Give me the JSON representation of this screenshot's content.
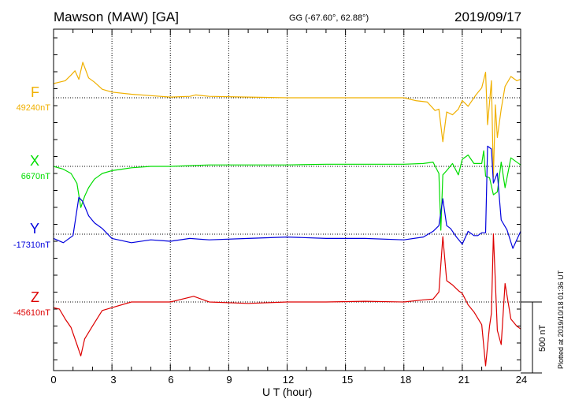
{
  "header": {
    "title": "Mawson (MAW)  [GA]",
    "coords": "GG (-67.60°,  62.88°)",
    "date": "2019/09/17"
  },
  "footer": {
    "plotted": "Plotted at 2019/10/18 01:36 UT"
  },
  "colors": {
    "F": "#f0b000",
    "X": "#00dd00",
    "Y": "#0000dd",
    "Z": "#dd0000"
  },
  "chart_data": {
    "type": "line",
    "title": "Mawson (MAW)  [GA]",
    "xlabel": "U T (hour)",
    "ylabel": "",
    "xlim": [
      0,
      24
    ],
    "xticks": [
      "0",
      "3",
      "6",
      "9",
      "12",
      "15",
      "18",
      "21",
      "24"
    ],
    "grid": true,
    "scale_bar_label": "500 nT",
    "scale_bar_value": 500,
    "series": [
      {
        "name": "F",
        "baseline_label": "49240nT",
        "baseline": 49240,
        "x": [
          0,
          0.3,
          0.6,
          0.9,
          1.1,
          1.3,
          1.5,
          1.8,
          2.1,
          2.5,
          3,
          4,
          5,
          6,
          7,
          7.3,
          8,
          10,
          12,
          14,
          16,
          18,
          18.6,
          19.2,
          19.6,
          19.8,
          20,
          20.2,
          20.5,
          20.8,
          21,
          21.3,
          21.7,
          22,
          22.2,
          22.3,
          22.5,
          22.6,
          22.7,
          22.8,
          23,
          23.2,
          23.5,
          23.8,
          24
        ],
        "y": [
          100,
          110,
          120,
          160,
          190,
          130,
          250,
          140,
          110,
          60,
          40,
          25,
          15,
          5,
          10,
          20,
          10,
          5,
          0,
          0,
          0,
          0,
          -20,
          -30,
          -90,
          -80,
          -310,
          -100,
          -120,
          -80,
          -20,
          -60,
          20,
          70,
          180,
          -190,
          120,
          -560,
          -50,
          -280,
          -80,
          80,
          150,
          120,
          130
        ]
      },
      {
        "name": "X",
        "baseline_label": "6670nT",
        "baseline": 6670,
        "x": [
          0,
          0.5,
          0.9,
          1.2,
          1.4,
          1.6,
          1.8,
          2.1,
          2.5,
          3,
          3.5,
          4,
          5,
          6,
          7,
          8,
          10,
          12,
          14,
          16,
          18,
          19,
          19.5,
          19.8,
          19.9,
          20,
          20.2,
          20.5,
          20.8,
          21,
          21.3,
          21.6,
          22,
          22.1,
          22.2,
          22.4,
          22.6,
          22.8,
          23,
          23.2,
          23.5,
          24
        ],
        "y": [
          0,
          -20,
          -50,
          -120,
          -290,
          -210,
          -150,
          -90,
          -50,
          -30,
          -20,
          -10,
          0,
          0,
          5,
          10,
          10,
          10,
          15,
          15,
          15,
          20,
          30,
          -50,
          -450,
          -60,
          -30,
          20,
          -60,
          50,
          80,
          20,
          20,
          110,
          -70,
          -80,
          -200,
          -180,
          30,
          -150,
          60,
          10
        ]
      },
      {
        "name": "Y",
        "baseline_label": "-17310nT",
        "baseline": -17310,
        "x": [
          0,
          0.5,
          1,
          1.3,
          1.5,
          1.8,
          2.1,
          2.5,
          3,
          4,
          5,
          6,
          7,
          8,
          10,
          12,
          14,
          16,
          18,
          19,
          19.5,
          19.8,
          20,
          20.2,
          20.4,
          20.7,
          21,
          21.3,
          21.6,
          21.8,
          22,
          22.2,
          22.3,
          22.5,
          22.6,
          22.8,
          23,
          23.3,
          23.6,
          24
        ],
        "y": [
          -30,
          -60,
          -10,
          260,
          230,
          130,
          80,
          40,
          -30,
          -60,
          -40,
          -50,
          -30,
          -40,
          -30,
          -20,
          -30,
          -30,
          -40,
          -20,
          20,
          60,
          250,
          60,
          40,
          -20,
          -70,
          20,
          -10,
          -10,
          10,
          10,
          620,
          600,
          360,
          430,
          100,
          30,
          -100,
          20
        ]
      },
      {
        "name": "Z",
        "baseline_label": "-45610nT",
        "baseline": -45610,
        "x": [
          0,
          0.3,
          0.6,
          0.9,
          1.2,
          1.4,
          1.6,
          2,
          2.5,
          3,
          4,
          6,
          7.2,
          8,
          10,
          12,
          14,
          16,
          18,
          19,
          19.5,
          19.8,
          20,
          20.2,
          20.5,
          20.8,
          21,
          21.3,
          21.6,
          22,
          22.2,
          22.4,
          22.5,
          22.6,
          22.8,
          23,
          23.2,
          23.5,
          23.8,
          24
        ],
        "y": [
          -40,
          -50,
          -120,
          -180,
          -300,
          -380,
          -260,
          -170,
          -60,
          -40,
          0,
          0,
          40,
          0,
          -10,
          0,
          0,
          5,
          0,
          15,
          20,
          70,
          460,
          150,
          120,
          80,
          60,
          -20,
          -70,
          -160,
          -450,
          -170,
          -80,
          480,
          -200,
          -300,
          130,
          -120,
          -170,
          -190
        ]
      }
    ]
  }
}
